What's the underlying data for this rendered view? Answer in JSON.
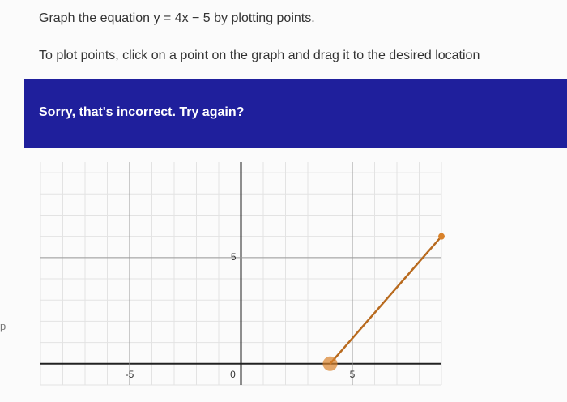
{
  "prompt": {
    "line1": "Graph the equation y = 4x − 5 by plotting points.",
    "line2": "To plot points, click on a point on the graph and drag it to the desired location"
  },
  "feedback": "Sorry, that's incorrect. Try again?",
  "side_label": "p",
  "graph": {
    "xlim": [
      -9,
      9
    ],
    "ylim": [
      -1,
      9.5
    ],
    "xticks": [
      -5,
      0,
      5
    ],
    "yticks": [
      5
    ],
    "grid_step": 1,
    "line_color": "#b86a1e",
    "point_color": "#d9822b",
    "points": [
      {
        "x": 4,
        "y": 0
      },
      {
        "x": 9,
        "y": 6
      }
    ]
  }
}
